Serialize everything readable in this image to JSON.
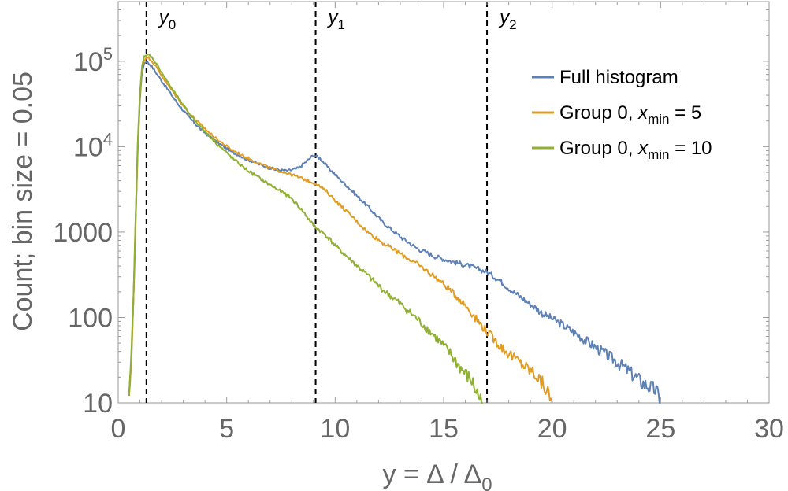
{
  "chart_data": {
    "type": "line",
    "title": "",
    "xlabel": "y = Δ / Δ",
    "xlabel_sub": "0",
    "ylabel": "Count; bin size = 0.05",
    "xlim": [
      0,
      30
    ],
    "ylim": [
      10,
      500000
    ],
    "y_scale": "log",
    "x_ticks": [
      0,
      5,
      10,
      15,
      20,
      25,
      30
    ],
    "y_ticks": [
      {
        "value": 10,
        "label": "10"
      },
      {
        "value": 100,
        "label": "100"
      },
      {
        "value": 1000,
        "label": "1000"
      },
      {
        "value": 10000,
        "label": "10",
        "sup": "4"
      },
      {
        "value": 100000,
        "label": "10",
        "sup": "5"
      }
    ],
    "grid": false,
    "legend_position": "top-right",
    "vertical_lines": [
      {
        "x": 1.3,
        "label": "y",
        "sub": "0"
      },
      {
        "x": 9.1,
        "label": "y",
        "sub": "1"
      },
      {
        "x": 17.0,
        "label": "y",
        "sub": "2"
      }
    ],
    "series": [
      {
        "name": "Full histogram",
        "color": "#5e81b5",
        "points": [
          [
            0.5,
            10
          ],
          [
            0.6,
            30
          ],
          [
            0.7,
            150
          ],
          [
            0.8,
            1200
          ],
          [
            0.9,
            9000
          ],
          [
            1.0,
            35000
          ],
          [
            1.1,
            75000
          ],
          [
            1.2,
            95000
          ],
          [
            1.3,
            100000
          ],
          [
            1.5,
            90000
          ],
          [
            1.8,
            70000
          ],
          [
            2.2,
            50000
          ],
          [
            2.7,
            33000
          ],
          [
            3.2,
            23000
          ],
          [
            3.8,
            16000
          ],
          [
            4.5,
            11500
          ],
          [
            5.2,
            8800
          ],
          [
            5.9,
            7200
          ],
          [
            6.6,
            6100
          ],
          [
            7.2,
            5400
          ],
          [
            7.8,
            5200
          ],
          [
            8.3,
            5600
          ],
          [
            8.7,
            6800
          ],
          [
            9.0,
            8000
          ],
          [
            9.3,
            7300
          ],
          [
            9.7,
            5600
          ],
          [
            10.2,
            4200
          ],
          [
            10.8,
            3000
          ],
          [
            11.5,
            2000
          ],
          [
            12.2,
            1300
          ],
          [
            13.0,
            880
          ],
          [
            13.8,
            640
          ],
          [
            14.6,
            520
          ],
          [
            15.4,
            450
          ],
          [
            16.2,
            400
          ],
          [
            17.0,
            340
          ],
          [
            17.6,
            270
          ],
          [
            18.2,
            200
          ],
          [
            18.9,
            150
          ],
          [
            19.6,
            110
          ],
          [
            20.4,
            85
          ],
          [
            21.2,
            62
          ],
          [
            22.0,
            45
          ],
          [
            22.8,
            33
          ],
          [
            23.5,
            24
          ],
          [
            24.2,
            17
          ],
          [
            24.8,
            14
          ],
          [
            25.0,
            10
          ]
        ]
      },
      {
        "name": "Group 0, x",
        "name_sub": "min",
        "name_suffix": " = 5",
        "color": "#e19c24",
        "points": [
          [
            0.5,
            10
          ],
          [
            0.6,
            32
          ],
          [
            0.7,
            160
          ],
          [
            0.8,
            1300
          ],
          [
            0.9,
            10000
          ],
          [
            1.0,
            40000
          ],
          [
            1.1,
            85000
          ],
          [
            1.2,
            105000
          ],
          [
            1.35,
            112000
          ],
          [
            1.5,
            105000
          ],
          [
            1.8,
            82000
          ],
          [
            2.2,
            57000
          ],
          [
            2.7,
            38000
          ],
          [
            3.2,
            26000
          ],
          [
            3.8,
            18000
          ],
          [
            4.5,
            12500
          ],
          [
            5.2,
            9300
          ],
          [
            5.9,
            7500
          ],
          [
            6.6,
            6200
          ],
          [
            7.2,
            5400
          ],
          [
            7.8,
            4900
          ],
          [
            8.4,
            4300
          ],
          [
            9.1,
            3700
          ],
          [
            9.6,
            3000
          ],
          [
            10.2,
            2100
          ],
          [
            10.8,
            1500
          ],
          [
            11.5,
            1000
          ],
          [
            12.2,
            750
          ],
          [
            13.0,
            560
          ],
          [
            13.8,
            420
          ],
          [
            14.6,
            300
          ],
          [
            15.3,
            210
          ],
          [
            16.0,
            140
          ],
          [
            16.6,
            90
          ],
          [
            17.2,
            60
          ],
          [
            17.8,
            42
          ],
          [
            18.5,
            30
          ],
          [
            19.2,
            22
          ],
          [
            19.7,
            15
          ],
          [
            20.0,
            10
          ]
        ]
      },
      {
        "name": "Group 0, x",
        "name_sub": "min",
        "name_suffix": " = 10",
        "color": "#8fb032",
        "points": [
          [
            0.5,
            10
          ],
          [
            0.6,
            33
          ],
          [
            0.7,
            170
          ],
          [
            0.8,
            1400
          ],
          [
            0.9,
            11000
          ],
          [
            1.0,
            43000
          ],
          [
            1.1,
            90000
          ],
          [
            1.2,
            112000
          ],
          [
            1.4,
            120000
          ],
          [
            1.6,
            108000
          ],
          [
            1.9,
            82000
          ],
          [
            2.3,
            56000
          ],
          [
            2.8,
            36000
          ],
          [
            3.3,
            24000
          ],
          [
            3.9,
            16000
          ],
          [
            4.6,
            10500
          ],
          [
            5.3,
            7200
          ],
          [
            6.0,
            5200
          ],
          [
            6.7,
            4000
          ],
          [
            7.3,
            3200
          ],
          [
            7.9,
            2600
          ],
          [
            8.4,
            1900
          ],
          [
            9.0,
            1200
          ],
          [
            9.6,
            900
          ],
          [
            10.2,
            620
          ],
          [
            10.8,
            450
          ],
          [
            11.5,
            310
          ],
          [
            12.2,
            210
          ],
          [
            13.0,
            145
          ],
          [
            13.8,
            95
          ],
          [
            14.6,
            60
          ],
          [
            15.3,
            38
          ],
          [
            15.8,
            25
          ],
          [
            16.3,
            18
          ],
          [
            16.6,
            12
          ],
          [
            16.8,
            10
          ]
        ]
      }
    ]
  }
}
